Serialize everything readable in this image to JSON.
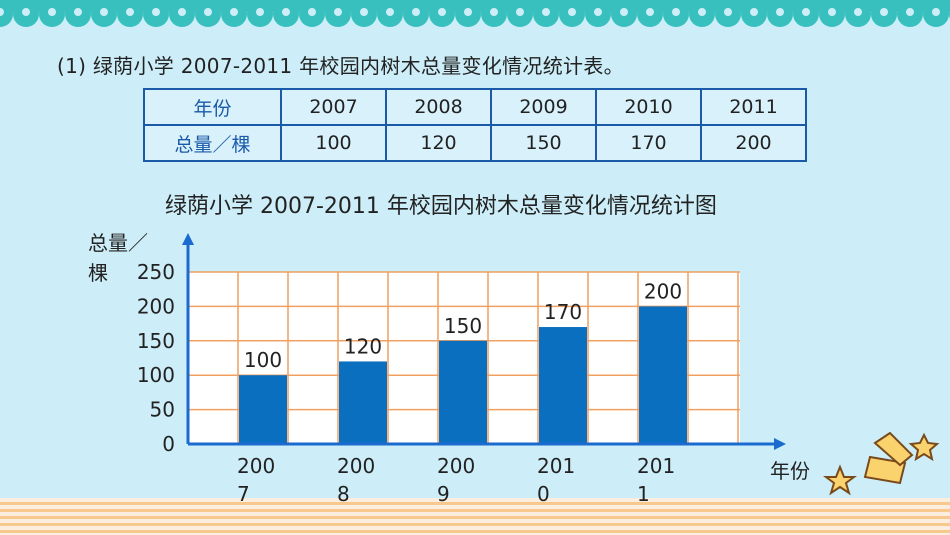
{
  "colors": {
    "background": "#cdeef8",
    "scallop": "#37c0bd",
    "bar": "#0a6fbf",
    "grid": "#f0a060",
    "axis": "#1a6ad0",
    "table_border": "#1a5aa8",
    "stripe_light": "#fbeede",
    "stripe_orange": "#f7c98e",
    "star_fill": "#fbd36e",
    "star_stroke": "#7a4a1a"
  },
  "heading": "(1) 绿荫小学 2007-2011 年校园内树木总量变化情况统计表。",
  "table": {
    "row1_label": "年份",
    "row2_label": "总量／棵",
    "years": [
      "2007",
      "2008",
      "2009",
      "2010",
      "2011"
    ],
    "totals": [
      "100",
      "120",
      "150",
      "170",
      "200"
    ]
  },
  "chart_data": {
    "type": "bar",
    "title": "绿荫小学 2007-2011 年校园内树木总量变化情况统计图",
    "ylabel": "总量／棵",
    "xlabel": "年份",
    "categories": [
      "2007",
      "2008",
      "2009",
      "2010",
      "2011"
    ],
    "values": [
      100,
      120,
      150,
      170,
      200
    ],
    "data_labels": [
      "100",
      "120",
      "150",
      "170",
      "200"
    ],
    "yticks": [
      0,
      50,
      100,
      150,
      200,
      250
    ],
    "ylim": [
      0,
      250
    ],
    "grid": true
  },
  "decorations": [
    "star-icon",
    "star-icon",
    "ribbon-icon",
    "ribbon-icon"
  ]
}
